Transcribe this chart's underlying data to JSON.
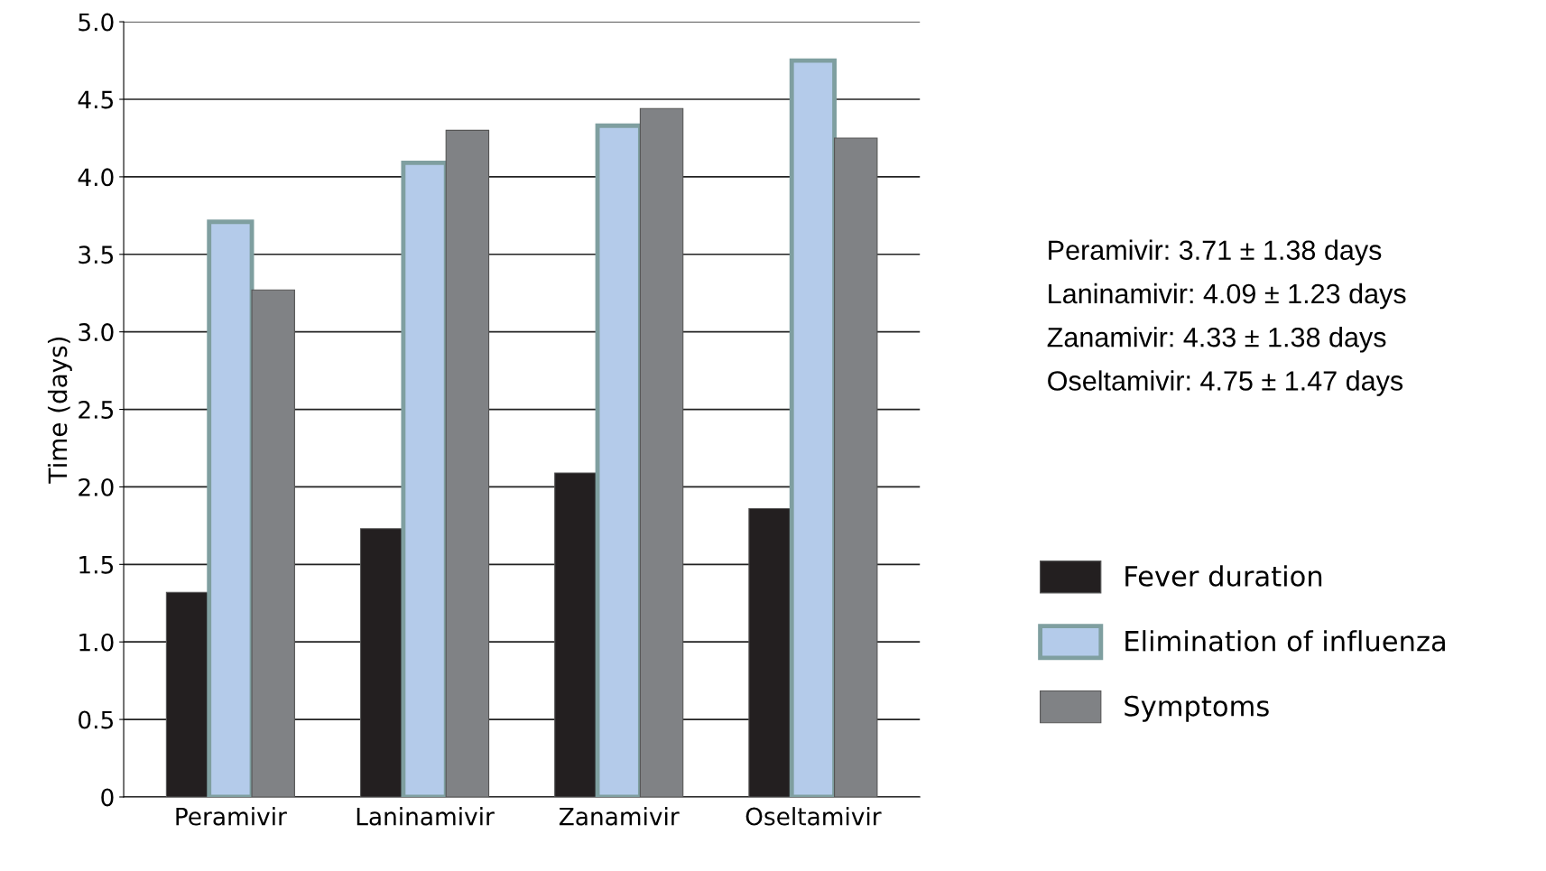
{
  "chart_data": {
    "type": "bar",
    "ylabel": "Time (days)",
    "categories": [
      "Peramivir",
      "Laninamivir",
      "Zanamivir",
      "Oseltamivir"
    ],
    "series": [
      {
        "name": "Fever duration",
        "color": "#231f20",
        "values": [
          1.32,
          1.73,
          2.09,
          1.86
        ]
      },
      {
        "name": "Elimination of influenza",
        "color": "#b4cbea",
        "values": [
          3.71,
          4.09,
          4.33,
          4.75
        ]
      },
      {
        "name": "Symptoms",
        "color": "#808285",
        "values": [
          3.27,
          4.3,
          4.44,
          4.25
        ]
      }
    ],
    "ylim": [
      0,
      5.0
    ],
    "yticks": [
      0,
      {
        "value": 0.5,
        "label": "0.5"
      },
      {
        "value": 1,
        "label": "1.0"
      },
      {
        "value": 1.5,
        "label": "1.5"
      },
      {
        "value": 2,
        "label": "2.0"
      },
      {
        "value": 2.5,
        "label": "2.5"
      },
      {
        "value": 3,
        "label": "3.0"
      },
      {
        "value": 3.5,
        "label": "3.5"
      },
      {
        "value": 4,
        "label": "4.0"
      },
      {
        "value": 4.5,
        "label": "4.5"
      },
      {
        "value": 5,
        "label": "5.0"
      }
    ],
    "grid": "y",
    "legend": "right",
    "annotations": [
      "Peramivir: 3.71 ± 1.38 days",
      "Laninamivir: 4.09 ± 1.23 days",
      "Zanamivir: 4.33 ± 1.38 days",
      "Oseltamivir: 4.75 ± 1.47 days"
    ]
  }
}
